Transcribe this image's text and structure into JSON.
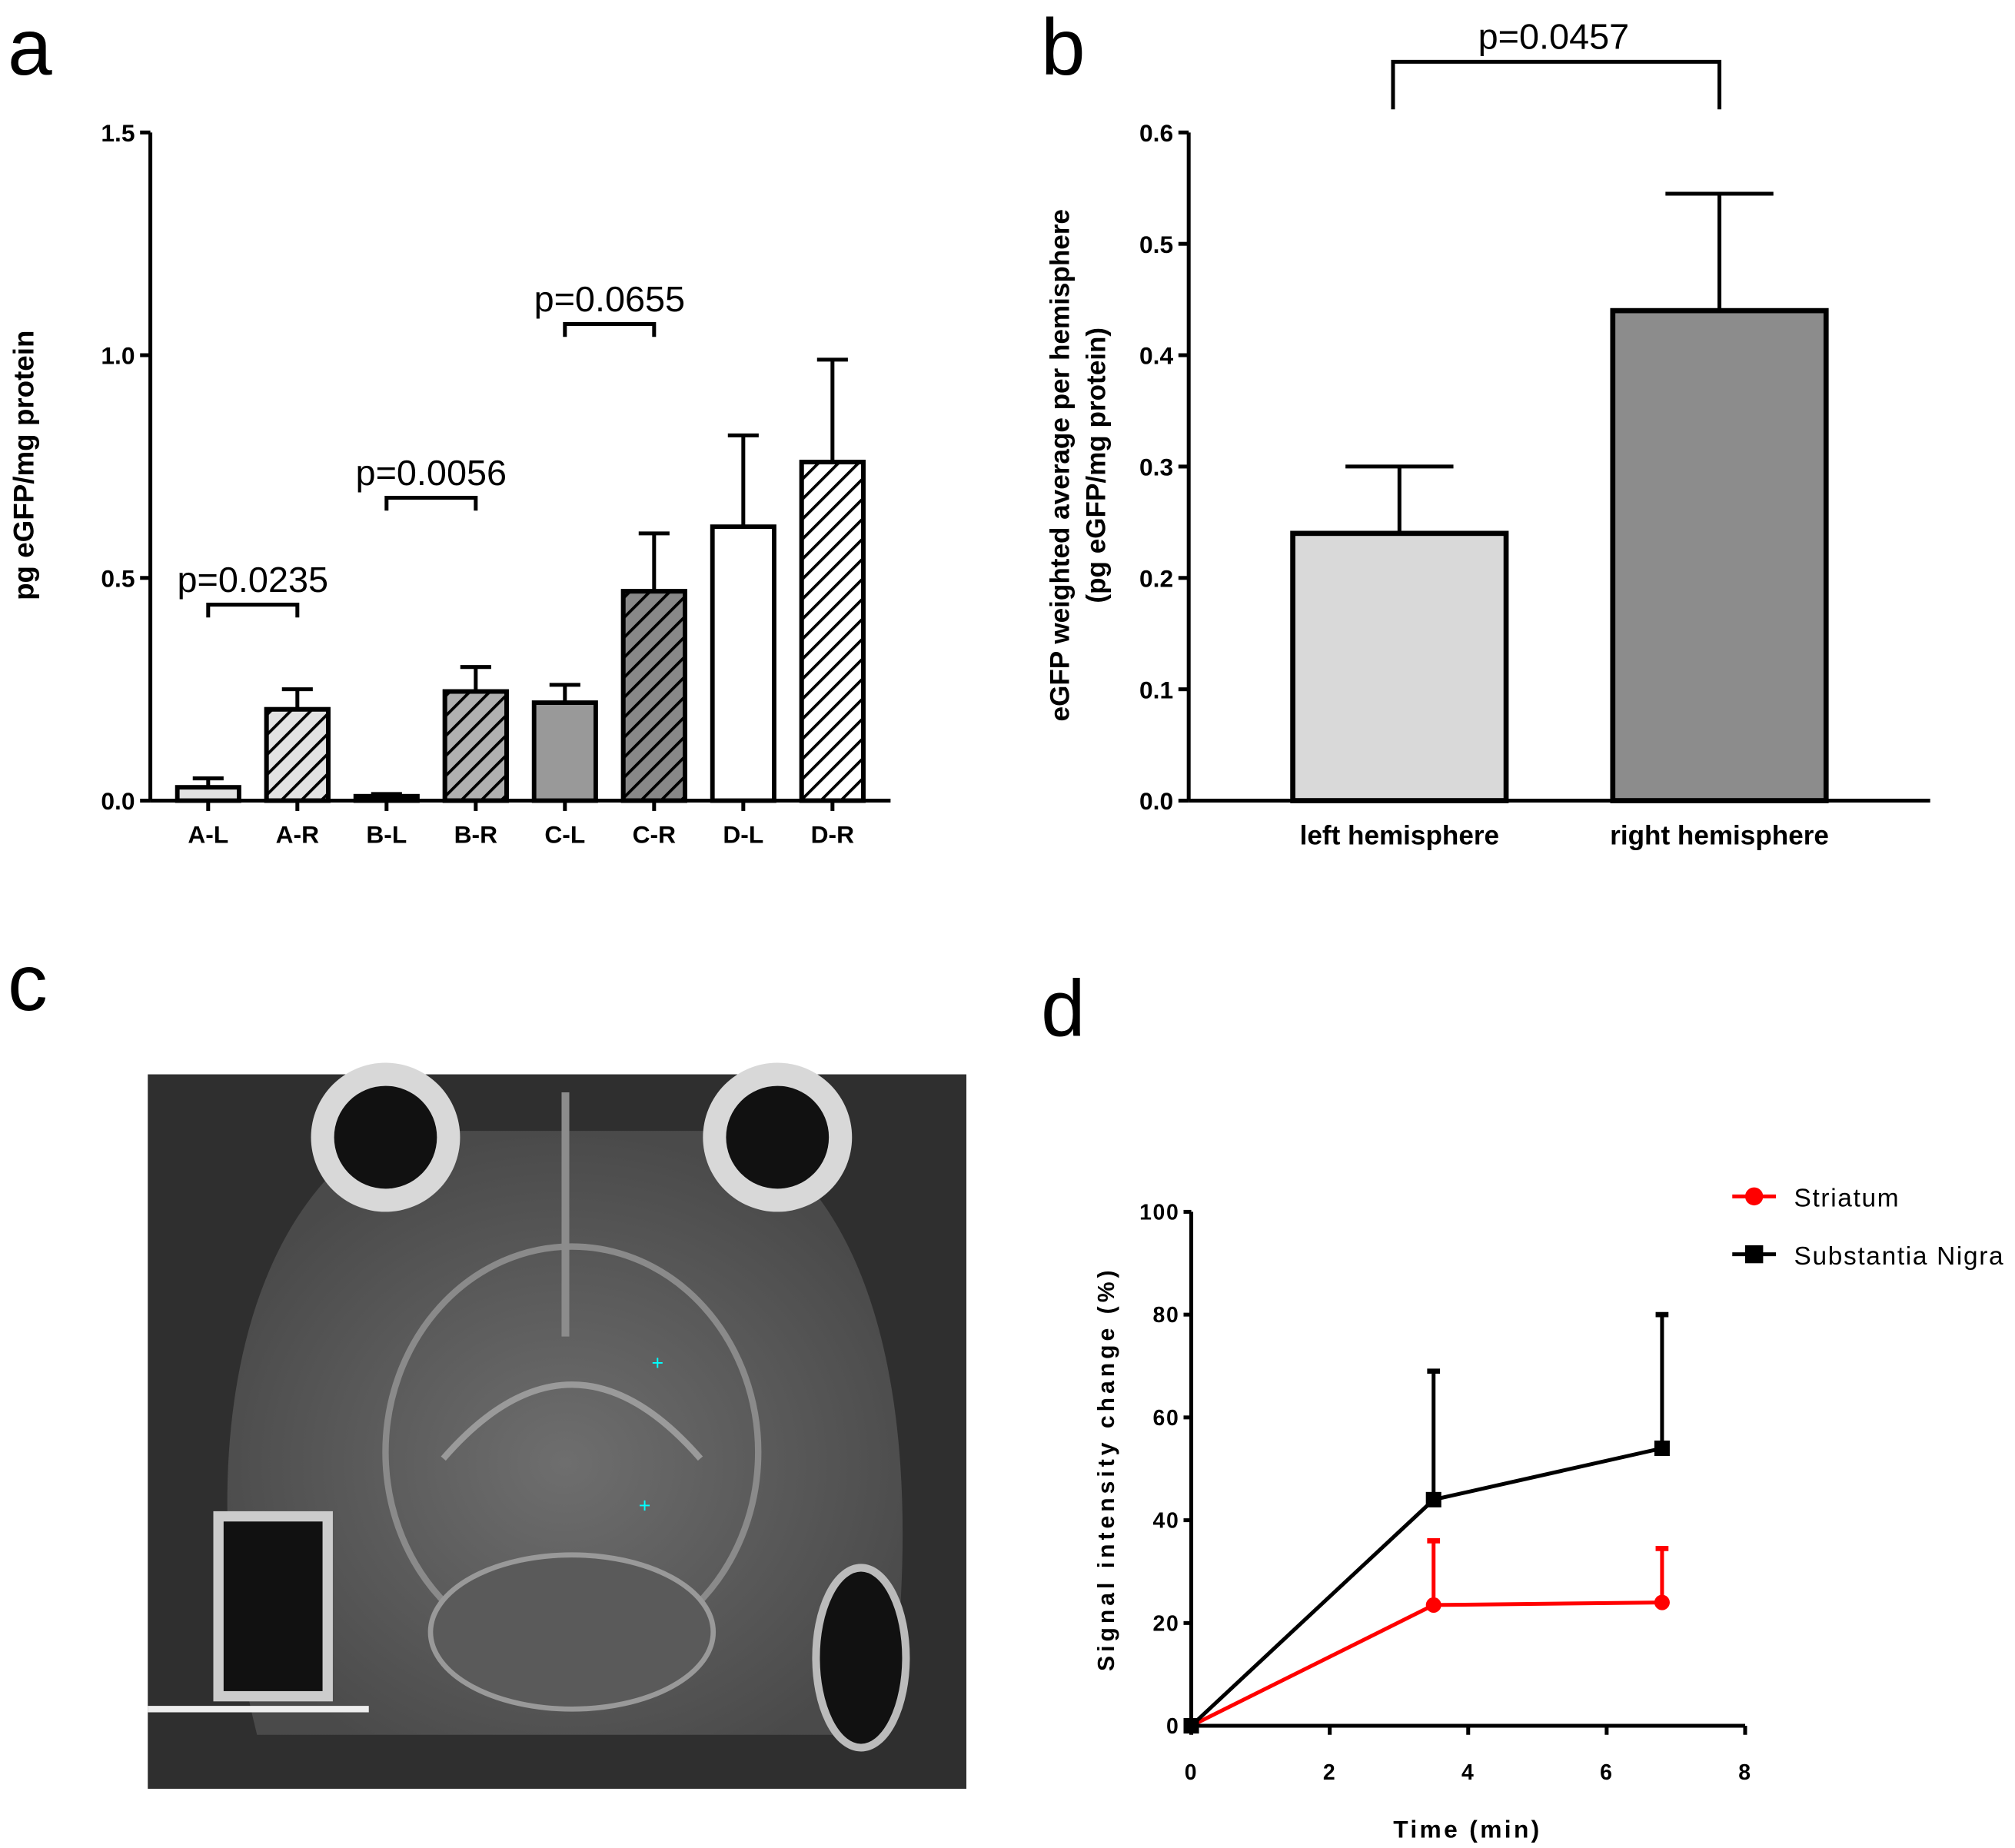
{
  "panel_labels": {
    "a": "a",
    "b": "b",
    "c": "c",
    "d": "d"
  },
  "chart_data": [
    {
      "type": "bar",
      "panel": "a",
      "ylabel": "pg eGFP/mg protein",
      "ylim": [
        0,
        1.5
      ],
      "yticks": [
        "0.0",
        "0.5",
        "1.0",
        "1.5"
      ],
      "categories": [
        "A-L",
        "A-R",
        "B-L",
        "B-R",
        "C-L",
        "C-R",
        "D-L",
        "D-R"
      ],
      "values": [
        0.03,
        0.205,
        0.01,
        0.245,
        0.22,
        0.47,
        0.615,
        0.76
      ],
      "error_upper": [
        0.05,
        0.25,
        0.015,
        0.3,
        0.26,
        0.6,
        0.82,
        0.99
      ],
      "fills": [
        "#e2e2e2",
        "#e2e2e2",
        "#333333",
        "#b0b0b0",
        "#999999",
        "#888888",
        "#ffffff",
        "#ffffff"
      ],
      "hatched": [
        false,
        true,
        false,
        true,
        false,
        true,
        false,
        true
      ],
      "annotations": [
        {
          "text": "p=0.0235",
          "between": [
            "A-L",
            "A-R"
          ],
          "level": 0.44
        },
        {
          "text": "p=0.0056",
          "between": [
            "B-L",
            "B-R"
          ],
          "level": 0.68
        },
        {
          "text": "p=0.0655",
          "between": [
            "C-L",
            "C-R"
          ],
          "level": 1.07
        }
      ]
    },
    {
      "type": "bar",
      "panel": "b",
      "ylabel": "eGFP weighted average per hemisphere",
      "ylabel2": "(pg eGFP/mg protein)",
      "ylim": [
        0,
        0.6
      ],
      "yticks": [
        "0.0",
        "0.1",
        "0.2",
        "0.3",
        "0.4",
        "0.5",
        "0.6"
      ],
      "categories": [
        "left hemisphere",
        "right hemisphere"
      ],
      "values": [
        0.24,
        0.44
      ],
      "error_upper": [
        0.3,
        0.545
      ],
      "fills": [
        "#d9d9d9",
        "#8c8c8c"
      ],
      "annotation": {
        "text": "p=0.0457"
      }
    },
    {
      "type": "line",
      "panel": "d",
      "xlabel": "Time (min)",
      "ylabel": "Signal intensity change (%)",
      "xlim": [
        0,
        8
      ],
      "ylim": [
        0,
        100
      ],
      "xticks": [
        "0",
        "2",
        "4",
        "6",
        "8"
      ],
      "yticks": [
        "0",
        "20",
        "40",
        "60",
        "80",
        "100"
      ],
      "legend_position": "top-right",
      "series": [
        {
          "name": "Striatum",
          "color": "#ff0000",
          "marker": "circle",
          "x": [
            0,
            3.5,
            6.8
          ],
          "y": [
            0,
            23.5,
            24
          ],
          "error_upper": [
            0,
            36,
            34.5
          ]
        },
        {
          "name": "Substantia Nigra",
          "color": "#000000",
          "marker": "square",
          "x": [
            0,
            3.5,
            6.8
          ],
          "y": [
            0,
            44,
            54
          ],
          "error_upper": [
            0,
            69,
            80
          ]
        }
      ]
    }
  ]
}
